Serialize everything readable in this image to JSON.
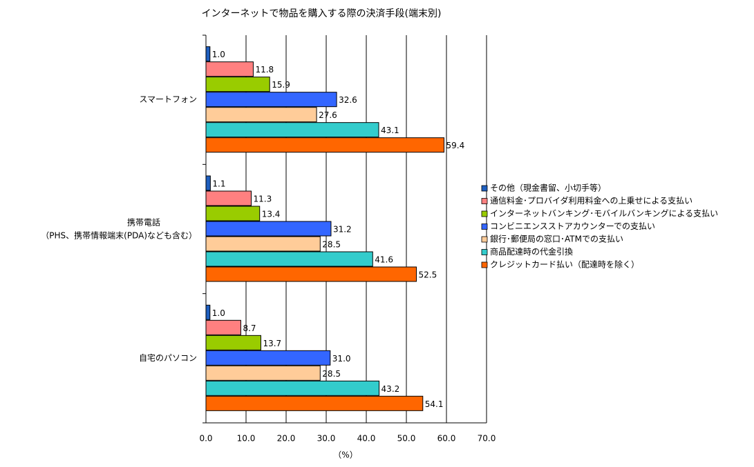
{
  "chart_data": {
    "type": "hbar",
    "title": "インターネットで物品を購入する際の決済手段(端末別)",
    "x_label": "（%）",
    "categories": [
      "スマートフォン",
      "携帯電話\n（PHS、携帯情報端末(PDA)なども含む）",
      "自宅のパソコン"
    ],
    "xlim": [
      0,
      70
    ],
    "xticks": [
      {
        "value": 0,
        "label": "0.0"
      },
      {
        "value": 10,
        "label": "10.0"
      },
      {
        "value": 20,
        "label": "20.0"
      },
      {
        "value": 30,
        "label": "30.0"
      },
      {
        "value": 40,
        "label": "40.0"
      },
      {
        "value": 50,
        "label": "50.0"
      },
      {
        "value": 60,
        "label": "60.0"
      },
      {
        "value": 70,
        "label": "70.0"
      }
    ],
    "grid": true,
    "legend": "right",
    "series": [
      {
        "name": "その他（現金書留、小切手等）",
        "color": "#1f5fbf",
        "values": [
          1.0,
          1.1,
          1.0
        ],
        "value_labels": [
          "1.0",
          "1.1",
          "1.0"
        ]
      },
      {
        "name": "通信料金･プロバイダ利用料金への上乗せによる支払い",
        "color": "#ff8080",
        "values": [
          11.8,
          11.3,
          8.7
        ],
        "value_labels": [
          "11.8",
          "11.3",
          "8.7"
        ]
      },
      {
        "name": "インターネットバンキング･モバイルバンキングによる支払い",
        "color": "#99cc00",
        "values": [
          15.9,
          13.4,
          13.7
        ],
        "value_labels": [
          "15.9",
          "13.4",
          "13.7"
        ]
      },
      {
        "name": "コンビニエンスストアカウンターでの支払い",
        "color": "#3366ff",
        "values": [
          32.6,
          31.2,
          31.0
        ],
        "value_labels": [
          "32.6",
          "31.2",
          "31.0"
        ]
      },
      {
        "name": "銀行･郵便局の窓口･ATMでの支払い",
        "color": "#ffcc99",
        "values": [
          27.6,
          28.5,
          28.5
        ],
        "value_labels": [
          "27.6",
          "28.5",
          "28.5"
        ]
      },
      {
        "name": "商品配達時の代金引換",
        "color": "#33cccc",
        "values": [
          43.1,
          41.6,
          43.2
        ],
        "value_labels": [
          "43.1",
          "41.6",
          "43.2"
        ]
      },
      {
        "name": "クレジットカード払い（配達時を除く）",
        "color": "#ff6600",
        "values": [
          59.4,
          52.5,
          54.1
        ],
        "value_labels": [
          "59.4",
          "52.5",
          "54.1"
        ]
      }
    ]
  }
}
